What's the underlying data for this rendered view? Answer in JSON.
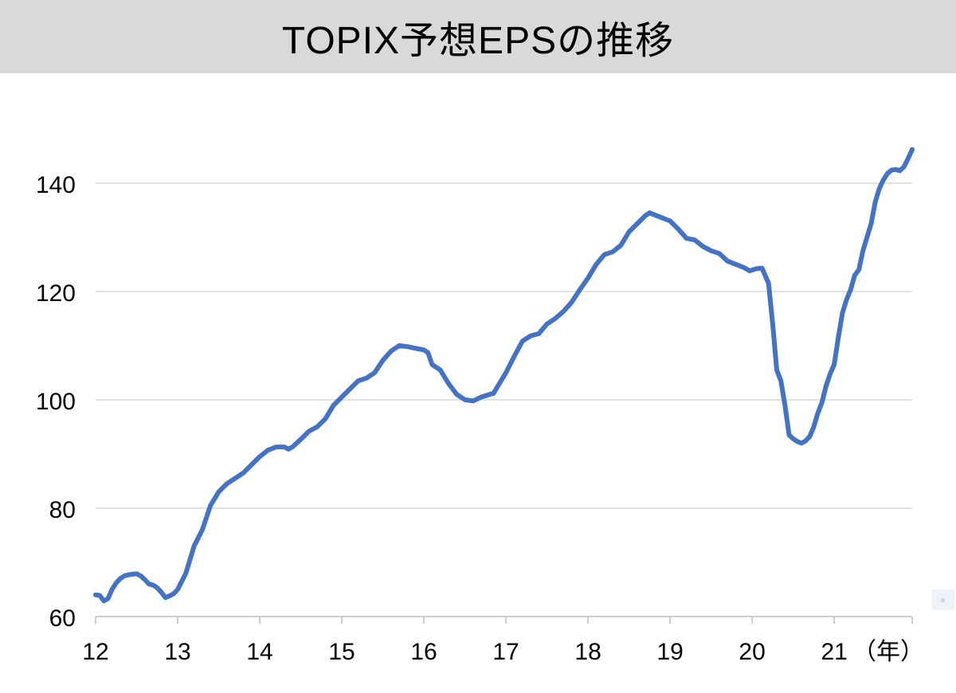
{
  "title": "TOPIX予想EPSの推移",
  "chart_data": {
    "type": "line",
    "title": "TOPIX予想EPSの推移",
    "xlabel": "（年）",
    "ylabel": "",
    "x_tick_labels": [
      "12",
      "13",
      "14",
      "15",
      "16",
      "17",
      "18",
      "19",
      "20",
      "21"
    ],
    "y_tick_labels": [
      "60",
      "80",
      "100",
      "120",
      "140"
    ],
    "xlim": [
      2012,
      2021.95
    ],
    "ylim": [
      60,
      146
    ],
    "grid": "horizontal",
    "legend": "none",
    "series": [
      {
        "color": "#4472c4",
        "points": [
          [
            2012.0,
            64.0
          ],
          [
            2012.05,
            63.9
          ],
          [
            2012.1,
            62.9
          ],
          [
            2012.15,
            63.3
          ],
          [
            2012.2,
            65.0
          ],
          [
            2012.25,
            66.2
          ],
          [
            2012.3,
            67.0
          ],
          [
            2012.35,
            67.5
          ],
          [
            2012.4,
            67.7
          ],
          [
            2012.45,
            67.8
          ],
          [
            2012.5,
            67.9
          ],
          [
            2012.55,
            67.5
          ],
          [
            2012.6,
            66.8
          ],
          [
            2012.65,
            66.0
          ],
          [
            2012.7,
            65.8
          ],
          [
            2012.75,
            65.3
          ],
          [
            2012.8,
            64.5
          ],
          [
            2012.85,
            63.5
          ],
          [
            2012.9,
            63.8
          ],
          [
            2012.95,
            64.2
          ],
          [
            2013.0,
            65.0
          ],
          [
            2013.1,
            68.0
          ],
          [
            2013.2,
            73.0
          ],
          [
            2013.3,
            76.0
          ],
          [
            2013.4,
            80.5
          ],
          [
            2013.5,
            83.0
          ],
          [
            2013.6,
            84.5
          ],
          [
            2013.7,
            85.5
          ],
          [
            2013.8,
            86.5
          ],
          [
            2013.9,
            88.0
          ],
          [
            2014.0,
            89.5
          ],
          [
            2014.1,
            90.7
          ],
          [
            2014.2,
            91.3
          ],
          [
            2014.3,
            91.3
          ],
          [
            2014.35,
            90.9
          ],
          [
            2014.4,
            91.3
          ],
          [
            2014.5,
            92.7
          ],
          [
            2014.6,
            94.2
          ],
          [
            2014.7,
            95.0
          ],
          [
            2014.8,
            96.5
          ],
          [
            2014.9,
            99.0
          ],
          [
            2015.0,
            100.5
          ],
          [
            2015.1,
            102.0
          ],
          [
            2015.2,
            103.5
          ],
          [
            2015.3,
            104.0
          ],
          [
            2015.4,
            105.0
          ],
          [
            2015.5,
            107.3
          ],
          [
            2015.6,
            109.0
          ],
          [
            2015.7,
            110.0
          ],
          [
            2015.8,
            109.8
          ],
          [
            2015.9,
            109.5
          ],
          [
            2016.0,
            109.2
          ],
          [
            2016.05,
            108.7
          ],
          [
            2016.1,
            106.5
          ],
          [
            2016.2,
            105.5
          ],
          [
            2016.3,
            103.0
          ],
          [
            2016.4,
            101.0
          ],
          [
            2016.5,
            100.0
          ],
          [
            2016.6,
            99.8
          ],
          [
            2016.7,
            100.5
          ],
          [
            2016.8,
            101.0
          ],
          [
            2016.85,
            101.2
          ],
          [
            2016.9,
            102.5
          ],
          [
            2017.0,
            105.0
          ],
          [
            2017.1,
            108.0
          ],
          [
            2017.2,
            110.8
          ],
          [
            2017.3,
            111.8
          ],
          [
            2017.4,
            112.2
          ],
          [
            2017.5,
            114.0
          ],
          [
            2017.6,
            115.0
          ],
          [
            2017.7,
            116.3
          ],
          [
            2017.8,
            118.0
          ],
          [
            2017.9,
            120.3
          ],
          [
            2018.0,
            122.5
          ],
          [
            2018.1,
            125.0
          ],
          [
            2018.2,
            126.8
          ],
          [
            2018.3,
            127.3
          ],
          [
            2018.4,
            128.5
          ],
          [
            2018.5,
            131.0
          ],
          [
            2018.6,
            132.5
          ],
          [
            2018.7,
            134.0
          ],
          [
            2018.75,
            134.5
          ],
          [
            2018.8,
            134.2
          ],
          [
            2018.9,
            133.6
          ],
          [
            2019.0,
            133.0
          ],
          [
            2019.1,
            131.5
          ],
          [
            2019.2,
            129.8
          ],
          [
            2019.3,
            129.5
          ],
          [
            2019.4,
            128.3
          ],
          [
            2019.5,
            127.5
          ],
          [
            2019.6,
            127.0
          ],
          [
            2019.7,
            125.6
          ],
          [
            2019.8,
            125.0
          ],
          [
            2019.9,
            124.4
          ],
          [
            2019.97,
            123.8
          ],
          [
            2020.05,
            124.2
          ],
          [
            2020.12,
            124.3
          ],
          [
            2020.2,
            121.5
          ],
          [
            2020.25,
            114.0
          ],
          [
            2020.3,
            105.5
          ],
          [
            2020.35,
            103.5
          ],
          [
            2020.4,
            99.0
          ],
          [
            2020.45,
            93.5
          ],
          [
            2020.5,
            92.8
          ],
          [
            2020.55,
            92.3
          ],
          [
            2020.6,
            92.0
          ],
          [
            2020.65,
            92.4
          ],
          [
            2020.7,
            93.2
          ],
          [
            2020.75,
            95.0
          ],
          [
            2020.8,
            97.5
          ],
          [
            2020.85,
            99.5
          ],
          [
            2020.9,
            102.5
          ],
          [
            2020.95,
            104.8
          ],
          [
            2021.0,
            106.5
          ],
          [
            2021.05,
            111.5
          ],
          [
            2021.1,
            116.0
          ],
          [
            2021.15,
            118.5
          ],
          [
            2021.2,
            120.3
          ],
          [
            2021.25,
            123.0
          ],
          [
            2021.3,
            124.0
          ],
          [
            2021.35,
            127.5
          ],
          [
            2021.4,
            130.0
          ],
          [
            2021.45,
            132.5
          ],
          [
            2021.5,
            136.5
          ],
          [
            2021.55,
            139.0
          ],
          [
            2021.6,
            140.6
          ],
          [
            2021.65,
            141.8
          ],
          [
            2021.7,
            142.4
          ],
          [
            2021.75,
            142.5
          ],
          [
            2021.8,
            142.3
          ],
          [
            2021.85,
            143.0
          ],
          [
            2021.9,
            144.5
          ],
          [
            2021.95,
            146.2
          ]
        ]
      }
    ]
  }
}
